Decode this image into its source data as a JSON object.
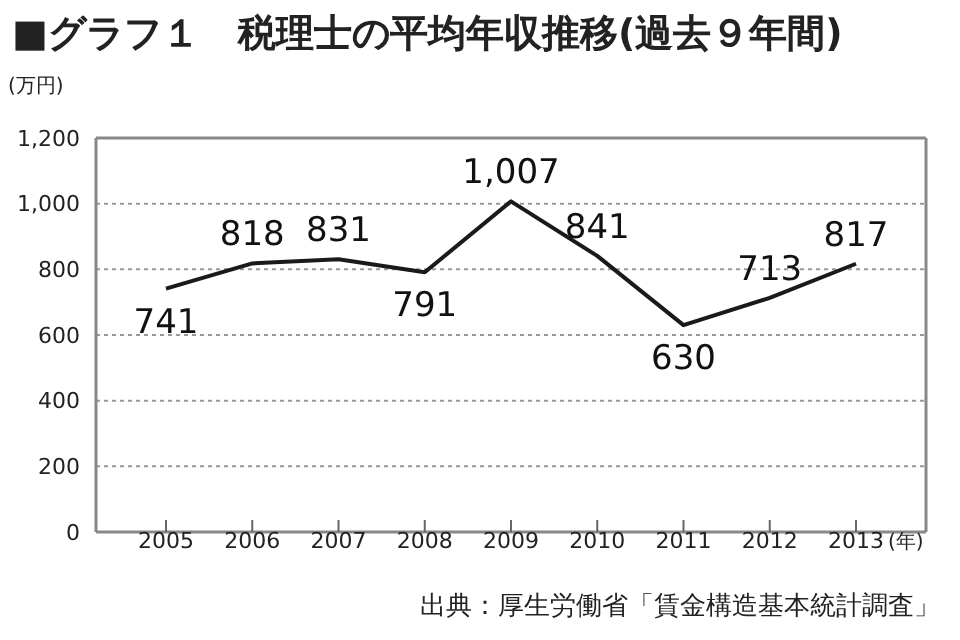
{
  "chart_data": {
    "type": "line",
    "title": "■グラフ１　税理士の平均年収推移(過去９年間)",
    "ylabel": "(万円)",
    "xlabel": "(年)",
    "categories": [
      "2005",
      "2006",
      "2007",
      "2008",
      "2009",
      "2010",
      "2011",
      "2012",
      "2013"
    ],
    "series": [
      {
        "color": "#1a1a1a",
        "values": [
          741,
          818,
          831,
          791,
          1007,
          841,
          630,
          713,
          817
        ],
        "value_labels": [
          "741",
          "818",
          "831",
          "791",
          "1,007",
          "841",
          "630",
          "713",
          "817"
        ]
      }
    ],
    "ylim": [
      0,
      1200
    ],
    "yticks": [
      {
        "value": 0,
        "label": "0"
      },
      {
        "value": 200,
        "label": "200"
      },
      {
        "value": 400,
        "label": "400"
      },
      {
        "value": 600,
        "label": "600"
      },
      {
        "value": 800,
        "label": "800"
      },
      {
        "value": 1000,
        "label": "1,000"
      },
      {
        "value": 1200,
        "label": "1,200"
      }
    ],
    "grid": "y",
    "marker": "none",
    "line_style": "solid",
    "annotations": [
      "出典：厚生労働省「賃金構造基本統計調査」"
    ]
  }
}
